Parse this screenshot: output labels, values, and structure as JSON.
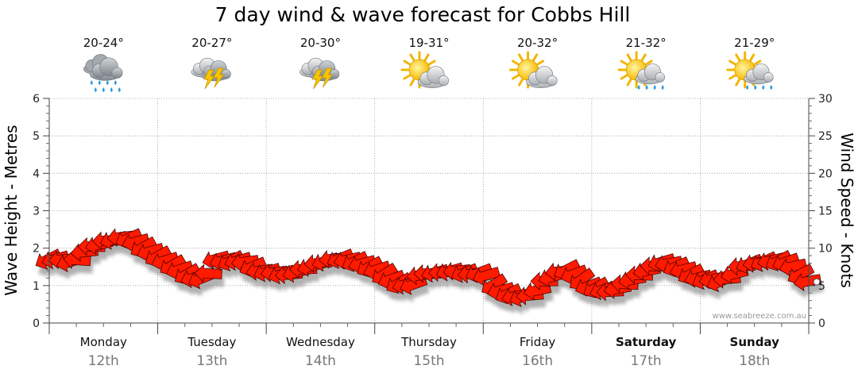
{
  "chart_data": {
    "type": "line",
    "title": "7 day wind & wave forecast for Cobbs Hill",
    "ylabel_left": "Wave Height - Metres",
    "ylabel_right": "Wind Speed - Knots",
    "ylim_left": [
      0,
      6
    ],
    "ylim_right": [
      0,
      30
    ],
    "yticks_left": [
      "0",
      "1",
      "2",
      "3",
      "4",
      "5",
      "6"
    ],
    "yticks_right": [
      "0",
      "5",
      "10",
      "15",
      "20",
      "25",
      "30"
    ],
    "days": [
      {
        "day": "Monday",
        "date": "12th",
        "temp": "20-24°",
        "icon": "rain-cloud-icon",
        "bold": false
      },
      {
        "day": "Tuesday",
        "date": "13th",
        "temp": "20-27°",
        "icon": "thunderstorm-icon",
        "bold": false
      },
      {
        "day": "Wednesday",
        "date": "14th",
        "temp": "20-30°",
        "icon": "thunderstorm-icon",
        "bold": false
      },
      {
        "day": "Thursday",
        "date": "15th",
        "temp": "19-31°",
        "icon": "partly-cloudy-icon",
        "bold": false
      },
      {
        "day": "Friday",
        "date": "16th",
        "temp": "20-32°",
        "icon": "partly-cloudy-icon",
        "bold": false
      },
      {
        "day": "Saturday",
        "date": "17th",
        "temp": "21-32°",
        "icon": "sun-showers-icon",
        "bold": true
      },
      {
        "day": "Sunday",
        "date": "18th",
        "temp": "21-29°",
        "icon": "sun-showers-icon",
        "bold": true
      }
    ],
    "series": [
      {
        "name": "Wind Speed (knots)",
        "color": "#ff0000",
        "values": [
          8.6,
          8.6,
          8.5,
          8.2,
          8.4,
          9.5,
          10.2,
          10.5,
          11.0,
          11.2,
          11.5,
          11.4,
          10.9,
          10.2,
          9.6,
          9.0,
          8.4,
          7.8,
          7.2,
          6.6,
          6.1,
          6.0,
          6.6,
          8.6,
          8.4,
          8.4,
          8.4,
          8.2,
          7.6,
          7.0,
          6.9,
          6.8,
          6.6,
          6.5,
          6.8,
          7.2,
          7.6,
          8.0,
          8.3,
          8.6,
          8.7,
          8.5,
          8.3,
          8.0,
          7.6,
          7.2,
          6.6,
          5.9,
          5.4,
          5.2,
          5.2,
          6.4,
          6.6,
          6.8,
          6.8,
          7.0,
          7.0,
          6.8,
          6.6,
          6.8,
          6.4,
          5.2,
          4.4,
          4.0,
          3.6,
          3.6,
          3.7,
          4.4,
          5.6,
          6.2,
          6.9,
          7.2,
          6.6,
          5.9,
          5.0,
          4.8,
          4.5,
          4.2,
          4.6,
          5.2,
          5.8,
          6.4,
          7.0,
          7.6,
          8.2,
          8.0,
          7.6,
          7.2,
          6.6,
          6.1,
          5.9,
          5.9,
          5.6,
          5.9,
          6.6,
          7.6,
          8.0,
          8.1,
          8.3,
          8.4,
          8.4,
          8.2,
          7.6,
          6.6,
          5.6
        ]
      },
      {
        "name": "Wave Height (m)",
        "color": "#000000",
        "values": [
          1.7,
          1.7,
          1.7,
          1.65,
          1.7,
          1.9,
          2.0,
          2.1,
          2.2,
          2.25,
          2.3,
          2.25,
          2.15,
          2.0,
          1.9,
          1.8,
          1.65,
          1.55,
          1.45,
          1.3,
          1.2,
          1.2,
          1.3,
          1.7,
          1.7,
          1.7,
          1.7,
          1.65,
          1.5,
          1.4,
          1.35,
          1.35,
          1.3,
          1.3,
          1.35,
          1.45,
          1.5,
          1.6,
          1.65,
          1.7,
          1.75,
          1.7,
          1.65,
          1.6,
          1.5,
          1.4,
          1.3,
          1.2,
          1.1,
          1.05,
          1.05,
          1.3,
          1.3,
          1.35,
          1.35,
          1.4,
          1.4,
          1.35,
          1.3,
          1.35,
          1.25,
          1.05,
          0.9,
          0.8,
          0.7,
          0.7,
          0.75,
          0.9,
          1.1,
          1.25,
          1.4,
          1.45,
          1.3,
          1.2,
          1.0,
          0.95,
          0.9,
          0.85,
          0.9,
          1.05,
          1.15,
          1.3,
          1.4,
          1.5,
          1.65,
          1.6,
          1.5,
          1.45,
          1.3,
          1.2,
          1.2,
          1.2,
          1.1,
          1.2,
          1.3,
          1.5,
          1.6,
          1.6,
          1.65,
          1.7,
          1.7,
          1.65,
          1.5,
          1.3,
          1.1
        ]
      }
    ],
    "watermark": "www.seabreeze.com.au"
  }
}
